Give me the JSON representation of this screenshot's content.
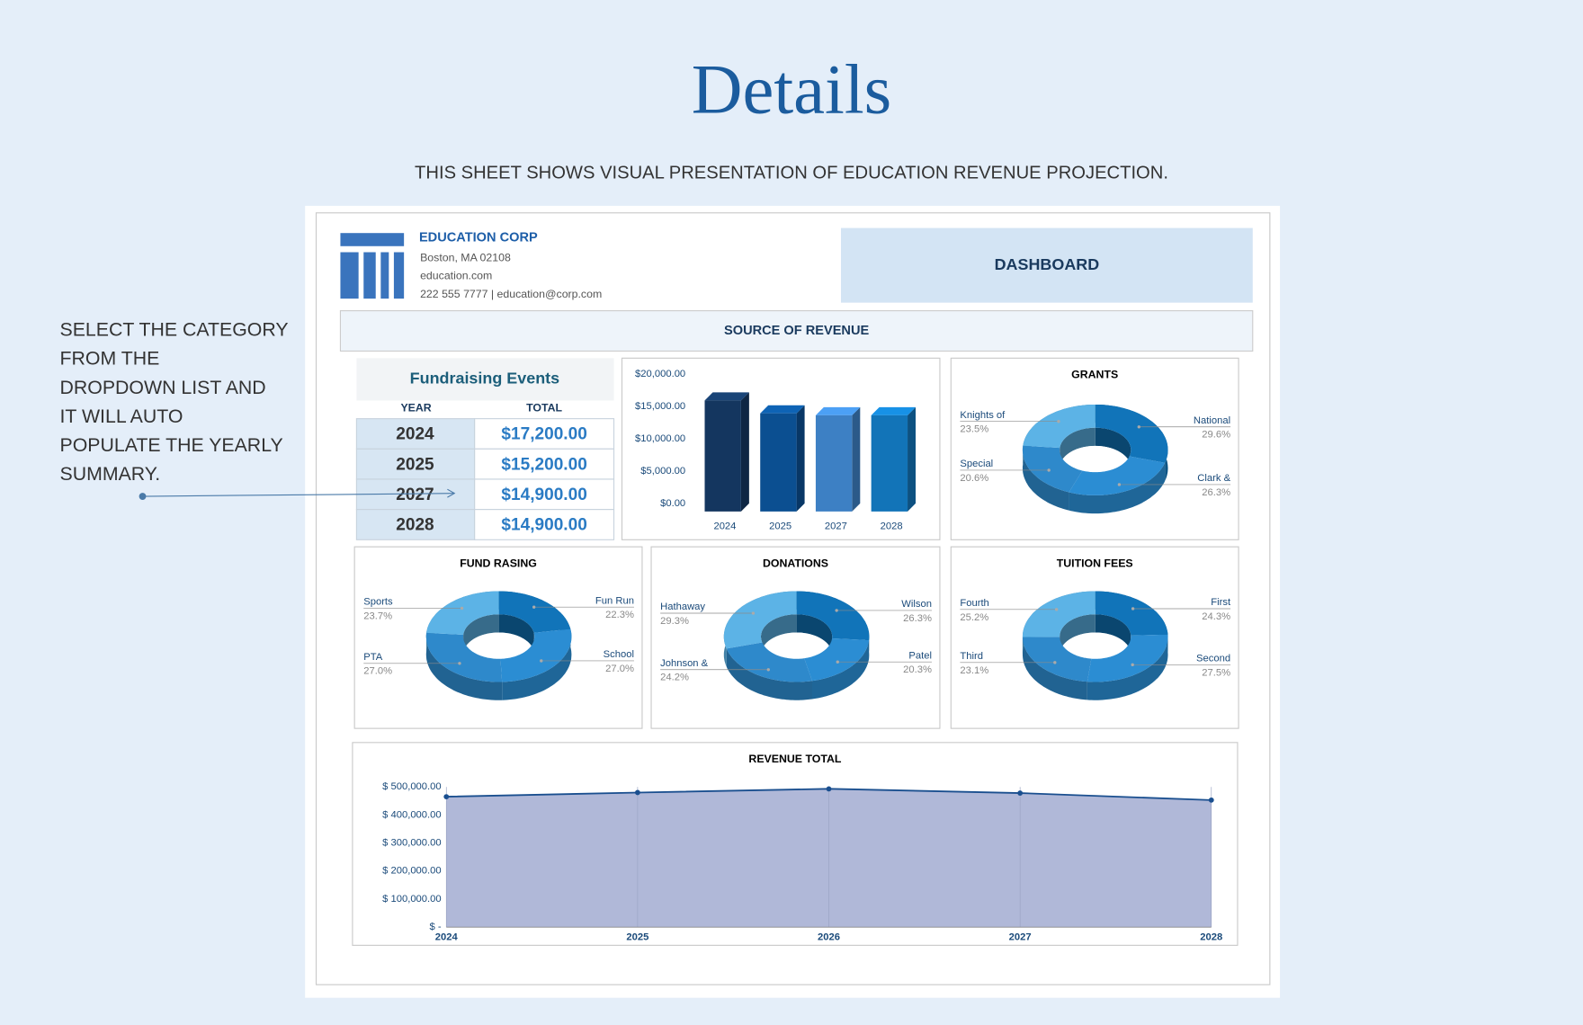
{
  "header": {
    "title": "Details",
    "subtitle": "THIS SHEET SHOWS VISUAL PRESENTATION OF EDUCATION REVENUE PROJECTION."
  },
  "note": {
    "lines": [
      "SELECT THE CATEGORY",
      "FROM THE",
      "DROPDOWN LIST AND",
      "IT WILL AUTO",
      "POPULATE THE YEARLY",
      "SUMMARY."
    ]
  },
  "company": {
    "name": "EDUCATION CORP",
    "address": "Boston, MA 02108",
    "website": "education.com",
    "contact": "222 555 7777 | education@corp.com"
  },
  "dashboard_label": "DASHBOARD",
  "section_label": "SOURCE OF REVENUE",
  "table": {
    "title": "Fundraising Events",
    "columns": [
      "YEAR",
      "TOTAL"
    ],
    "rows": [
      [
        2024,
        "$17,200.00"
      ],
      [
        2025,
        "$15,200.00"
      ],
      [
        2027,
        "$14,900.00"
      ],
      [
        2028,
        "$14,900.00"
      ]
    ]
  },
  "chart_data": [
    {
      "type": "bar",
      "categories": [
        "2024",
        "2025",
        "2027",
        "2028"
      ],
      "values": [
        17200,
        15200,
        14900,
        14900
      ],
      "colors": [
        "#14365f",
        "#0b4f91",
        "#3d80c4",
        "#1274b8"
      ],
      "ylim": [
        0,
        20000
      ],
      "yticks": [
        {
          "value": 0,
          "label": "$0.00"
        },
        {
          "value": 5000,
          "label": "$5,000.00"
        },
        {
          "value": 10000,
          "label": "$10,000.00"
        },
        {
          "value": 15000,
          "label": "$15,000.00"
        },
        {
          "value": 20000,
          "label": "$20,000.00"
        }
      ]
    },
    {
      "type": "pie",
      "title": "GRANTS",
      "categories": [
        "National",
        "Clark &",
        "Special",
        "Knights of"
      ],
      "values": [
        29.6,
        26.3,
        20.6,
        23.5
      ],
      "value_labels": [
        "29.6%",
        "26.3%",
        "20.6%",
        "23.5%"
      ],
      "colors": [
        "#1174b9",
        "#2b8dd3",
        "#2e89cb",
        "#5cb3e6"
      ]
    },
    {
      "type": "pie",
      "title": "FUND RASING",
      "categories": [
        "Fun Run",
        "School",
        "PTA",
        "Sports"
      ],
      "values": [
        22.3,
        27.0,
        27.0,
        23.7
      ],
      "value_labels": [
        "22.3%",
        "27.0%",
        "27.0%",
        "23.7%"
      ],
      "colors": [
        "#1174b9",
        "#2b8dd3",
        "#2e89cb",
        "#5cb3e6"
      ]
    },
    {
      "type": "pie",
      "title": "DONATIONS",
      "categories": [
        "Wilson",
        "Patel",
        "Johnson &",
        "Hathaway"
      ],
      "values": [
        26.3,
        20.3,
        24.2,
        29.3
      ],
      "value_labels": [
        "26.3%",
        "20.3%",
        "24.2%",
        "29.3%"
      ],
      "colors": [
        "#1174b9",
        "#2b8dd3",
        "#2e89cb",
        "#5cb3e6"
      ]
    },
    {
      "type": "pie",
      "title": "TUITION FEES",
      "categories": [
        "First",
        "Second",
        "Third",
        "Fourth"
      ],
      "values": [
        24.3,
        27.5,
        23.1,
        25.2
      ],
      "value_labels": [
        "24.3%",
        "27.5%",
        "23.1%",
        "25.2%"
      ],
      "colors": [
        "#1174b9",
        "#2b8dd3",
        "#2e89cb",
        "#5cb3e6"
      ]
    },
    {
      "type": "area",
      "title": "REVENUE TOTAL",
      "categories": [
        "2024",
        "2025",
        "2026",
        "2027",
        "2028"
      ],
      "values": [
        465000,
        480000,
        493000,
        478000,
        453000
      ],
      "color": "#1a4f8f",
      "fill": "#b0b8d8",
      "ylim": [
        0,
        500000
      ],
      "yticks": [
        {
          "value": 0,
          "label": "$ -"
        },
        {
          "value": 100000,
          "label": "$ 100,000.00"
        },
        {
          "value": 200000,
          "label": "$ 200,000.00"
        },
        {
          "value": 300000,
          "label": "$ 300,000.00"
        },
        {
          "value": 400000,
          "label": "$ 400,000.00"
        },
        {
          "value": 500000,
          "label": "$ 500,000.00"
        }
      ]
    }
  ]
}
